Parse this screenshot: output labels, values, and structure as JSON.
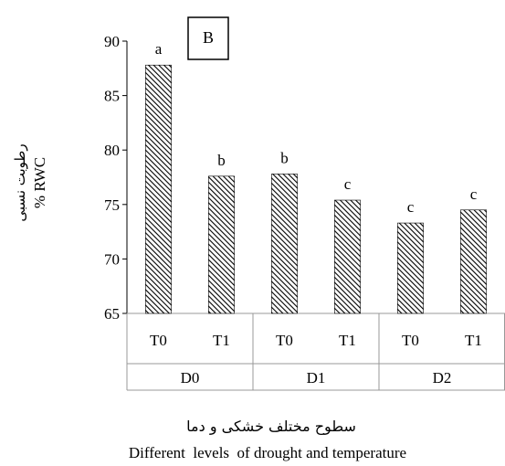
{
  "chart_data": {
    "type": "bar",
    "panel_label": "B",
    "ylabel_fa": "رطوبت نسبی",
    "ylabel_en": "% RWC",
    "xlabel_fa": "سطوح مختلف خشکی و دما",
    "xlabel_en": "Different  levels  of drought and temperature",
    "ylim": [
      65,
      90
    ],
    "yticks": [
      65,
      70,
      75,
      80,
      85,
      90
    ],
    "grid": false,
    "bar_pattern": "diagonal-hatch",
    "groups": [
      {
        "label": "D0",
        "categories": [
          "T0",
          "T1"
        ],
        "values": [
          87.8,
          77.6
        ],
        "letters": [
          "a",
          "b"
        ]
      },
      {
        "label": "D1",
        "categories": [
          "T0",
          "T1"
        ],
        "values": [
          77.8,
          75.4
        ],
        "letters": [
          "b",
          "c"
        ]
      },
      {
        "label": "D2",
        "categories": [
          "T0",
          "T1"
        ],
        "values": [
          73.3,
          74.5
        ],
        "letters": [
          "c",
          "c"
        ]
      }
    ]
  }
}
